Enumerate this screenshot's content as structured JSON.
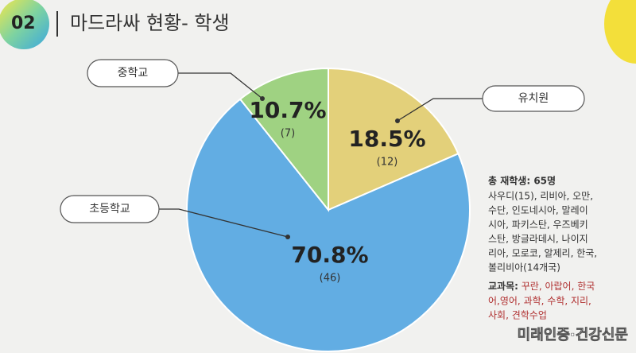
{
  "chart_data": {
    "type": "pie",
    "section_number": "02",
    "title": "마드라싸 현황- 학생",
    "categories": [
      "유치원",
      "초등학교",
      "중학교"
    ],
    "values": [
      18.5,
      70.8,
      10.7
    ],
    "value_labels": [
      "18.5%",
      "70.8%",
      "10.7%"
    ],
    "count_labels": [
      "(12)",
      "(46)",
      "(7)"
    ],
    "colors": [
      "#e3d07a",
      "#62ade3",
      "#9fd282"
    ],
    "notes": {
      "heading": "총 재학생: 65명",
      "lines": [
        "사우디(15), 리비아, 오만,",
        "수단, 인도네시아, 말레이",
        "시아, 파키스탄, 우즈베키",
        "스탄, 방글라데시, 나이지",
        "리아, 모로코, 알제리, 한국,",
        "볼리비아(14개국)"
      ],
      "subjects_label": "교과목:",
      "subjects_lines": [
        " 꾸란, 아랍어, 한국",
        "어,영어, 과학, 수학, 지리,",
        "사회, 견학수업"
      ]
    },
    "watermark": "미래인증·건강신문"
  }
}
